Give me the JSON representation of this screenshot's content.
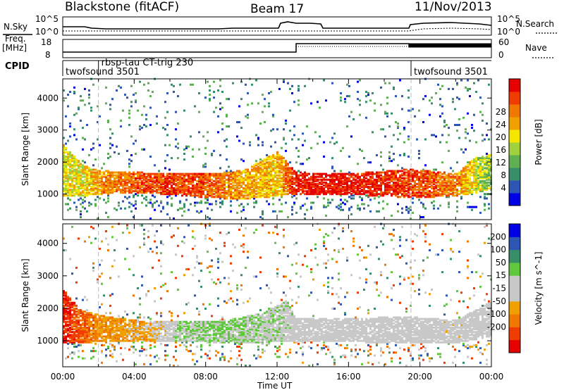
{
  "header": {
    "title": "Blackstone (fitACF)",
    "beam": "Beam 17",
    "date": "11/Nov/2013"
  },
  "summary_panels": {
    "nsky_label": "N.Sky",
    "nsearch_label": "N.Search",
    "noise_ticks": [
      "10^5",
      "10^0"
    ],
    "freq_label_1": "Freq.",
    "freq_label_2": "[MHz]",
    "freq_ticks": [
      "18",
      "8"
    ],
    "nave_label": "Nave",
    "nave_ticks": [
      "60",
      "0"
    ],
    "cpid_label": "CPID",
    "cpid_entries": [
      {
        "text": "twofsound 3501",
        "start_hour": 0.0
      },
      {
        "text": "rbsp-tau CT-trig 230",
        "start_hour": 2.0
      },
      {
        "text": "twofsound 3501",
        "start_hour": 19.5
      }
    ]
  },
  "chart_data": [
    {
      "type": "heatmap",
      "title": "",
      "xlabel": "",
      "ylabel": "Slant Range [km]",
      "xlim": [
        0,
        24
      ],
      "ylim": [
        200,
        4600
      ],
      "yticks": [
        1000,
        2000,
        3000,
        4000
      ],
      "colorbar": {
        "label": "Power [dB]",
        "ticks": [
          "4",
          "8",
          "12",
          "16",
          "20",
          "24",
          "28"
        ],
        "range": [
          0,
          30
        ],
        "colors": [
          "#0000e6",
          "#2d55b4",
          "#378f6a",
          "#5fb050",
          "#9fd23c",
          "#f5e600",
          "#f0a000",
          "#f07800",
          "#f03c00",
          "#e60000"
        ]
      },
      "bands": [
        {
          "h": 0.0,
          "lo": 900,
          "hi": 2500,
          "p": 16
        },
        {
          "h": 1.0,
          "lo": 900,
          "hi": 1900,
          "p": 16
        },
        {
          "h": 2.0,
          "lo": 950,
          "hi": 1700,
          "p": 20
        },
        {
          "h": 4.0,
          "lo": 1000,
          "hi": 1650,
          "p": 24
        },
        {
          "h": 6.0,
          "lo": 950,
          "hi": 1600,
          "p": 26
        },
        {
          "h": 8.0,
          "lo": 850,
          "hi": 1600,
          "p": 24
        },
        {
          "h": 10.0,
          "lo": 800,
          "hi": 1700,
          "p": 20
        },
        {
          "h": 12.0,
          "lo": 900,
          "hi": 2300,
          "p": 18
        },
        {
          "h": 13.0,
          "lo": 950,
          "hi": 1650,
          "p": 28
        },
        {
          "h": 16.0,
          "lo": 950,
          "hi": 1600,
          "p": 28
        },
        {
          "h": 19.5,
          "lo": 850,
          "hi": 1750,
          "p": 26
        },
        {
          "h": 22.0,
          "lo": 900,
          "hi": 1600,
          "p": 22
        },
        {
          "h": 23.0,
          "lo": 1000,
          "hi": 2100,
          "p": 16
        },
        {
          "h": 24.0,
          "lo": 1100,
          "hi": 2200,
          "p": 12
        }
      ]
    },
    {
      "type": "heatmap",
      "title": "",
      "xlabel": "Time UT",
      "ylabel": "Slant Range [km]",
      "xlim": [
        0,
        24
      ],
      "ylim": [
        200,
        4600
      ],
      "xticks": [
        "00:00",
        "04:00",
        "08:00",
        "12:00",
        "16:00",
        "20:00",
        "00:00"
      ],
      "yticks": [
        1000,
        2000,
        3000,
        4000
      ],
      "colorbar": {
        "label": "Velocity [m s^-1]",
        "ticks": [
          "200",
          "100",
          "50",
          "15",
          "-15",
          "-50",
          "-100",
          "-200"
        ],
        "range": [
          -250,
          250
        ],
        "colors": [
          "#e60000",
          "#f03c00",
          "#f07800",
          "#f0a000",
          "#c8c8c8",
          "#c8c8c8",
          "#5fc83c",
          "#378f6a",
          "#2d55b4",
          "#0000e6"
        ]
      },
      "bands": [
        {
          "h": 0.0,
          "lo": 900,
          "hi": 2500,
          "v": -200
        },
        {
          "h": 1.0,
          "lo": 900,
          "hi": 1900,
          "v": -150
        },
        {
          "h": 2.5,
          "lo": 950,
          "hi": 1700,
          "v": -90
        },
        {
          "h": 5.0,
          "lo": 950,
          "hi": 1550,
          "v": -60
        },
        {
          "h": 6.5,
          "lo": 950,
          "hi": 1550,
          "v": 40
        },
        {
          "h": 9.0,
          "lo": 900,
          "hi": 1600,
          "v": 60
        },
        {
          "h": 11.0,
          "lo": 900,
          "hi": 1800,
          "v": 40
        },
        {
          "h": 12.5,
          "lo": 950,
          "hi": 2200,
          "v": 20
        },
        {
          "h": 13.0,
          "lo": 950,
          "hi": 1650,
          "v": 0
        },
        {
          "h": 19.5,
          "lo": 900,
          "hi": 1700,
          "v": 0
        },
        {
          "h": 22.0,
          "lo": 900,
          "hi": 1600,
          "v": -10
        },
        {
          "h": 24.0,
          "lo": 1100,
          "hi": 2200,
          "v": 5
        }
      ]
    }
  ]
}
